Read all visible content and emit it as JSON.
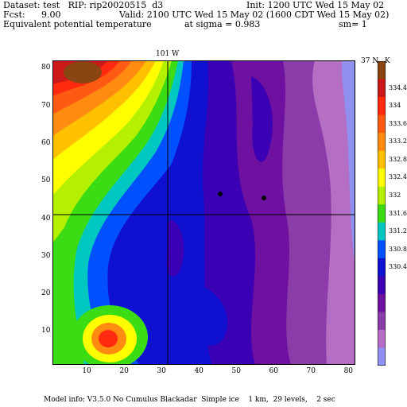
{
  "header": {
    "dataset": "Dataset: test   RIP: rip20020515  d3",
    "init": "Init: 1200 UTC Wed 15 May 02",
    "fcst_label": "Fcst:",
    "fcst_value": "9.00",
    "valid": "Valid: 2100 UTC Wed 15 May 02 (1600 CDT Wed 15 May 02)",
    "field": "Equivalent potential temperature",
    "sigma": "at sigma = 0.983",
    "sm": "sm= 1"
  },
  "plot": {
    "top_label": "101 W",
    "right_label": "37 N",
    "x_ticks": [
      "10",
      "20",
      "30",
      "40",
      "50",
      "60",
      "70",
      "80"
    ],
    "y_ticks": [
      "10",
      "20",
      "30",
      "40",
      "50",
      "60",
      "70",
      "80"
    ]
  },
  "colorbar": {
    "unit": "K",
    "levels": [
      "334.4",
      "334",
      "333.6",
      "333.2",
      "332.8",
      "332.4",
      "332",
      "331.6",
      "331.2",
      "330.8",
      "330.4"
    ],
    "colors": [
      "#8b4513",
      "#cc1a1a",
      "#ff2a10",
      "#ff5a14",
      "#ff8c10",
      "#ffc000",
      "#ffff00",
      "#b4f000",
      "#3cdc14",
      "#00c8c0",
      "#0050ff",
      "#1010d0",
      "#3c00b4",
      "#6e10a0",
      "#8c3ca8",
      "#b46ec3",
      "#9090f0"
    ]
  },
  "footer": "Model info: V3.5.0 No Cumulus Blackadar  Simple ice    1 km,  29 levels,    2 sec"
}
